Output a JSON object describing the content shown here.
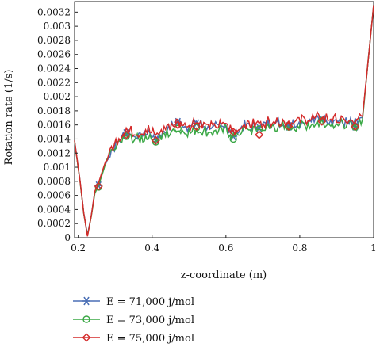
{
  "chart_data": {
    "type": "line",
    "xlabel": "z-coordinate (m)",
    "ylabel": "Rotation rate (1/s)",
    "xlim": [
      0.19,
      1.0
    ],
    "ylim": [
      0,
      0.00335
    ],
    "x_ticks": [
      "0.2",
      "0.4",
      "0.6",
      "0.8",
      "1"
    ],
    "x_tick_values": [
      0.2,
      0.4,
      0.6,
      0.8,
      1.0
    ],
    "y_ticks": [
      "0",
      "0.0002",
      "0.0004",
      "0.0006",
      "0.0008",
      "0.001",
      "0.0012",
      "0.0014",
      "0.0016",
      "0.0018",
      "0.002",
      "0.0022",
      "0.0024",
      "0.0026",
      "0.0028",
      "0.003",
      "0.0032"
    ],
    "y_tick_values": [
      0,
      0.0002,
      0.0004,
      0.0006,
      0.0008,
      0.001,
      0.0012,
      0.0014,
      0.0016,
      0.0018,
      0.002,
      0.0022,
      0.0024,
      0.0026,
      0.0028,
      0.003,
      0.0032
    ],
    "legend_position": "bottom",
    "series": [
      {
        "name": "E = 71,000 j/mol",
        "color": "#4a6fb5",
        "marker": "asterisk",
        "x": [
          0.19,
          0.205,
          0.215,
          0.225,
          0.235,
          0.245,
          0.255,
          0.27,
          0.29,
          0.31,
          0.33,
          0.36,
          0.39,
          0.41,
          0.44,
          0.47,
          0.5,
          0.52,
          0.56,
          0.6,
          0.62,
          0.65,
          0.69,
          0.73,
          0.77,
          0.81,
          0.86,
          0.9,
          0.95,
          0.97,
          0.985,
          1.0
        ],
        "y": [
          0.00138,
          0.0008,
          0.00035,
          4e-05,
          0.0003,
          0.00065,
          0.00076,
          0.001,
          0.00122,
          0.00136,
          0.00148,
          0.00142,
          0.00148,
          0.0014,
          0.00152,
          0.00164,
          0.00155,
          0.00162,
          0.00154,
          0.00158,
          0.00145,
          0.00158,
          0.00157,
          0.00162,
          0.0016,
          0.00163,
          0.00168,
          0.00164,
          0.0016,
          0.0017,
          0.0025,
          0.0033
        ],
        "marker_x": [
          0.255,
          0.33,
          0.41,
          0.47,
          0.52,
          0.62,
          0.69,
          0.77,
          0.86,
          0.95
        ],
        "marker_y": [
          0.00074,
          0.00148,
          0.00139,
          0.00164,
          0.00162,
          0.00144,
          0.00156,
          0.00158,
          0.00168,
          0.00158
        ]
      },
      {
        "name": "E = 73,000 j/mol",
        "color": "#3aa845",
        "marker": "circle",
        "x": [
          0.19,
          0.205,
          0.215,
          0.225,
          0.235,
          0.245,
          0.255,
          0.27,
          0.29,
          0.31,
          0.33,
          0.36,
          0.39,
          0.41,
          0.44,
          0.47,
          0.5,
          0.52,
          0.56,
          0.6,
          0.62,
          0.65,
          0.69,
          0.73,
          0.77,
          0.81,
          0.86,
          0.9,
          0.95,
          0.97,
          0.985,
          1.0
        ],
        "y": [
          0.00137,
          0.00079,
          0.00034,
          3e-05,
          0.00029,
          0.00063,
          0.00074,
          0.00098,
          0.0012,
          0.00133,
          0.00142,
          0.00138,
          0.00142,
          0.00136,
          0.00146,
          0.00152,
          0.00148,
          0.00152,
          0.00148,
          0.00152,
          0.00142,
          0.00152,
          0.00152,
          0.00156,
          0.00155,
          0.00158,
          0.00162,
          0.0016,
          0.00157,
          0.00168,
          0.0025,
          0.0033
        ],
        "marker_x": [
          0.255,
          0.33,
          0.41,
          0.47,
          0.52,
          0.62,
          0.69,
          0.77,
          0.86,
          0.95
        ],
        "marker_y": [
          0.00072,
          0.00144,
          0.00136,
          0.00155,
          0.00156,
          0.0014,
          0.00154,
          0.00157,
          0.00166,
          0.00157
        ]
      },
      {
        "name": "E = 75,000 j/mol",
        "color": "#d42a2a",
        "marker": "diamond",
        "x": [
          0.19,
          0.205,
          0.215,
          0.225,
          0.235,
          0.245,
          0.255,
          0.27,
          0.29,
          0.31,
          0.33,
          0.36,
          0.39,
          0.41,
          0.44,
          0.47,
          0.5,
          0.52,
          0.56,
          0.6,
          0.62,
          0.65,
          0.69,
          0.73,
          0.77,
          0.81,
          0.86,
          0.9,
          0.95,
          0.97,
          0.985,
          1.0
        ],
        "y": [
          0.00138,
          0.0008,
          0.00035,
          2e-05,
          0.0003,
          0.00066,
          0.00078,
          0.00102,
          0.00125,
          0.0014,
          0.00152,
          0.00146,
          0.00152,
          0.00144,
          0.00156,
          0.00162,
          0.00158,
          0.00164,
          0.00156,
          0.0016,
          0.00148,
          0.0016,
          0.0016,
          0.00165,
          0.00162,
          0.00166,
          0.0017,
          0.00166,
          0.00162,
          0.00172,
          0.0025,
          0.0033
        ],
        "marker_x": [
          0.255,
          0.33,
          0.41,
          0.47,
          0.52,
          0.62,
          0.69,
          0.77,
          0.86,
          0.95
        ],
        "marker_y": [
          0.00073,
          0.00146,
          0.00138,
          0.0016,
          0.00158,
          0.0015,
          0.00146,
          0.00158,
          0.00165,
          0.00158
        ]
      }
    ]
  }
}
